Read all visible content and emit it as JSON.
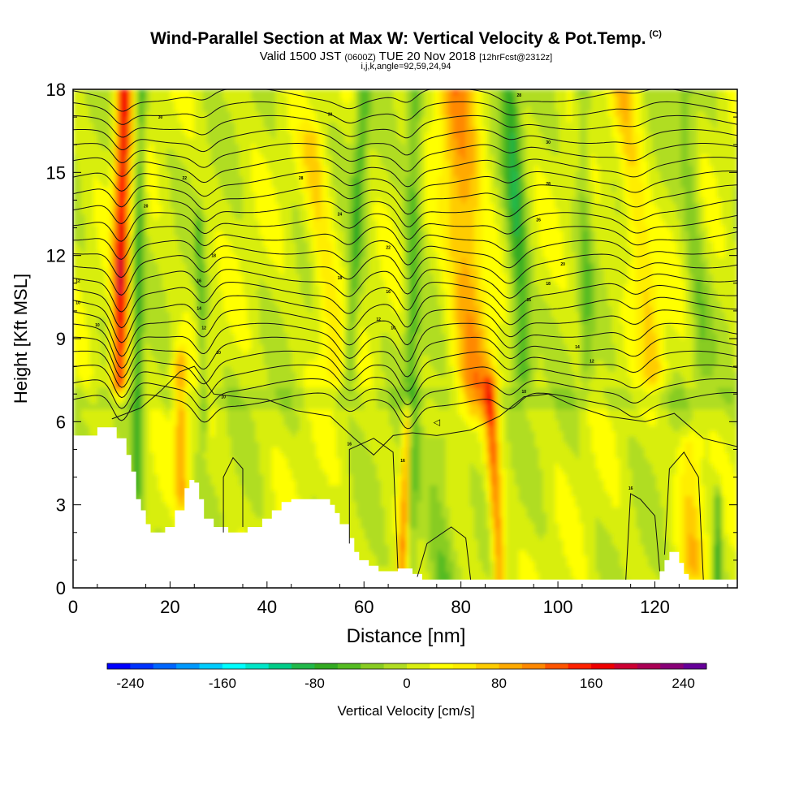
{
  "header": {
    "title": "Wind-Parallel Section at Max W: Vertical Velocity & Pot.Temp.",
    "title_tag": "(C)",
    "subtitle_main_a": "Valid 1500 JST",
    "subtitle_zulu": "(0600Z)",
    "subtitle_main_b": "TUE 20 Nov 2018",
    "subtitle_fcst": "[12hrFcst@2312z]",
    "subtitle_params": "i,j,k,angle=92,59,24,94"
  },
  "chart_data": {
    "type": "heatmap",
    "title": "Wind-Parallel Section at Max W: Vertical Velocity & Pot.Temp.",
    "xlabel": "Distance [nm]",
    "ylabel": "Height [Kft MSL]",
    "xlim": [
      0,
      137
    ],
    "ylim": [
      0,
      18
    ],
    "x_ticks": [
      0,
      20,
      40,
      60,
      80,
      100,
      120
    ],
    "x_tick_labels": [
      "0",
      "20",
      "40",
      "60",
      "80",
      "100",
      "120"
    ],
    "y_ticks": [
      0,
      3,
      6,
      9,
      12,
      15,
      18
    ],
    "y_tick_labels": [
      "0",
      "3",
      "6",
      "9",
      "12",
      "15",
      "18"
    ],
    "colorbar": {
      "label": "Vertical Velocity [cm/s]",
      "min": -260,
      "max": 260,
      "step": 20,
      "tick_values": [
        -240,
        -160,
        -80,
        0,
        80,
        160,
        240
      ],
      "tick_labels": [
        "-240",
        "-160",
        "-80",
        "0",
        "80",
        "160",
        "240"
      ],
      "colors": [
        "#0000ff",
        "#0033ff",
        "#0066ff",
        "#0099ff",
        "#00ccff",
        "#00ffff",
        "#00e6c8",
        "#00cc88",
        "#22b84a",
        "#33aa22",
        "#55bb22",
        "#88cc22",
        "#b0dd22",
        "#d8ee11",
        "#ffff00",
        "#ffee00",
        "#ffcc00",
        "#ffaa00",
        "#ff8800",
        "#ff5500",
        "#ff2200",
        "#ee0000",
        "#cc0033",
        "#aa0055",
        "#880077",
        "#660099"
      ]
    },
    "terrain": {
      "x": [
        0,
        5,
        9,
        11,
        12,
        13,
        14,
        15,
        16,
        19,
        21,
        23,
        24,
        25,
        26,
        27,
        29,
        32,
        35,
        36,
        39,
        41,
        43,
        45,
        50,
        53,
        54,
        55,
        57,
        58,
        59,
        61,
        63,
        65,
        67,
        70,
        72,
        76,
        80,
        84,
        88,
        92,
        96,
        100,
        104,
        108,
        112,
        116,
        120,
        121,
        122,
        123,
        124,
        125,
        126,
        127,
        130,
        133,
        137
      ],
      "top": [
        5.5,
        5.8,
        5.4,
        4.8,
        4.2,
        3.2,
        2.8,
        2.3,
        2.0,
        2.2,
        2.8,
        3.6,
        3.9,
        3.8,
        3.2,
        2.5,
        2.2,
        2.0,
        2.0,
        2.2,
        2.5,
        2.8,
        3.1,
        3.2,
        3.2,
        3.0,
        2.7,
        2.3,
        1.8,
        1.3,
        1.0,
        0.8,
        0.6,
        0.6,
        0.7,
        0.5,
        0.3,
        0.3,
        0.3,
        0.3,
        0.3,
        0.3,
        0.3,
        0.3,
        0.3,
        0.3,
        0.3,
        0.3,
        0.3,
        0.6,
        1.0,
        1.3,
        1.3,
        0.9,
        0.5,
        0.3,
        0.3,
        0.3,
        0.3
      ]
    },
    "updraft_bands": [
      {
        "x_top": 10.5,
        "x_bottom": 9.5,
        "z_top": 18,
        "z_bottom": 7.6,
        "half_width_nm": 1.6,
        "peak_cm_s": 160
      },
      {
        "x_top": 22,
        "x_bottom": 22.5,
        "z_top": 8,
        "z_bottom": 3.5,
        "half_width_nm": 1.4,
        "peak_cm_s": 80
      },
      {
        "x_top": 49,
        "x_bottom": 54,
        "z_top": 16,
        "z_bottom": 8,
        "half_width_nm": 2.5,
        "peak_cm_s": 50
      },
      {
        "x_top": 69,
        "x_bottom": 68,
        "z_top": 6,
        "z_bottom": 0.6,
        "half_width_nm": 1.0,
        "peak_cm_s": 120
      },
      {
        "x_top": 79,
        "x_bottom": 83,
        "z_top": 18,
        "z_bottom": 7,
        "half_width_nm": 4.0,
        "peak_cm_s": 90
      },
      {
        "x_top": 86,
        "x_bottom": 88,
        "z_top": 7,
        "z_bottom": 0.5,
        "half_width_nm": 1.3,
        "peak_cm_s": 110
      },
      {
        "x_top": 113,
        "x_bottom": 120,
        "z_top": 18,
        "z_bottom": 8,
        "half_width_nm": 2.5,
        "peak_cm_s": 60
      },
      {
        "x_top": 127,
        "x_bottom": 128,
        "z_top": 5,
        "z_bottom": 1,
        "half_width_nm": 2.5,
        "peak_cm_s": 60
      }
    ],
    "downdraft_bands": [
      {
        "x_top": 14,
        "x_bottom": 13,
        "z_top": 18,
        "z_bottom": 2,
        "half_width_nm": 1.1,
        "peak_cm_s": -70
      },
      {
        "x_top": 26,
        "x_bottom": 27,
        "z_top": 13,
        "z_bottom": 6,
        "half_width_nm": 0.9,
        "peak_cm_s": -50
      },
      {
        "x_top": 60,
        "x_bottom": 57,
        "z_top": 18,
        "z_bottom": 8,
        "half_width_nm": 1.4,
        "peak_cm_s": -60
      },
      {
        "x_top": 70.5,
        "x_bottom": 69.5,
        "z_top": 18,
        "z_bottom": 1,
        "half_width_nm": 1.6,
        "peak_cm_s": -60
      },
      {
        "x_top": 90,
        "x_bottom": 93,
        "z_top": 18,
        "z_bottom": 8,
        "half_width_nm": 2.0,
        "peak_cm_s": -80
      },
      {
        "x_top": 75,
        "x_bottom": 76,
        "z_top": 5,
        "z_bottom": 0.5,
        "half_width_nm": 3.0,
        "peak_cm_s": -40
      },
      {
        "x_top": 105,
        "x_bottom": 106,
        "z_top": 18,
        "z_bottom": 8,
        "half_width_nm": 1.5,
        "peak_cm_s": -40
      },
      {
        "x_top": 126,
        "x_bottom": 130,
        "z_top": 18,
        "z_bottom": 8,
        "half_width_nm": 2.0,
        "peak_cm_s": -40
      },
      {
        "x_top": 133,
        "x_bottom": 133,
        "z_top": 3,
        "z_bottom": 0.3,
        "half_width_nm": 0.8,
        "peak_cm_s": -80
      }
    ],
    "isentropes": {
      "levels_z_at_far_field": [
        6.8,
        7.3,
        7.8,
        8.3,
        8.8,
        9.3,
        9.8,
        10.3,
        10.8,
        11.3,
        11.8,
        12.3,
        12.8,
        13.3,
        13.8,
        14.3,
        14.8,
        15.3,
        15.8,
        16.3,
        16.8,
        17.3,
        17.8
      ],
      "wave_amplitudes": [
        {
          "x": 10,
          "amp_kft": 1.3,
          "width_nm": 2.5
        },
        {
          "x": 27,
          "amp_kft": 0.8,
          "width_nm": 2.5
        },
        {
          "x": 57,
          "amp_kft": 0.8,
          "width_nm": 3.0
        },
        {
          "x": 69,
          "amp_kft": 1.1,
          "width_nm": 2.5
        },
        {
          "x": 90,
          "amp_kft": 0.7,
          "width_nm": 3.0
        },
        {
          "x": 116,
          "amp_kft": 0.5,
          "width_nm": 3.0
        }
      ],
      "labels": [
        {
          "x": 18,
          "z": 17.0,
          "text": "30"
        },
        {
          "x": 23,
          "z": 14.8,
          "text": "22"
        },
        {
          "x": 15,
          "z": 13.8,
          "text": "20"
        },
        {
          "x": 29,
          "z": 12.0,
          "text": "18"
        },
        {
          "x": 26,
          "z": 11.1,
          "text": "16"
        },
        {
          "x": 26,
          "z": 10.1,
          "text": "14"
        },
        {
          "x": 27,
          "z": 9.4,
          "text": "12"
        },
        {
          "x": 1,
          "z": 11.1,
          "text": "12"
        },
        {
          "x": 1,
          "z": 10.3,
          "text": "10"
        },
        {
          "x": 5,
          "z": 9.5,
          "text": "10"
        },
        {
          "x": 30,
          "z": 8.5,
          "text": "10"
        },
        {
          "x": 31,
          "z": 6.9,
          "text": "10"
        },
        {
          "x": 47,
          "z": 14.8,
          "text": "28"
        },
        {
          "x": 55,
          "z": 13.5,
          "text": "24"
        },
        {
          "x": 55,
          "z": 11.2,
          "text": "18"
        },
        {
          "x": 53,
          "z": 17.1,
          "text": "30"
        },
        {
          "x": 63,
          "z": 9.7,
          "text": "12"
        },
        {
          "x": 66,
          "z": 9.4,
          "text": "10"
        },
        {
          "x": 65,
          "z": 12.3,
          "text": "22"
        },
        {
          "x": 65,
          "z": 10.7,
          "text": "16"
        },
        {
          "x": 57,
          "z": 5.2,
          "text": "16"
        },
        {
          "x": 68,
          "z": 4.6,
          "text": "16"
        },
        {
          "x": 92,
          "z": 17.8,
          "text": "28"
        },
        {
          "x": 98,
          "z": 16.1,
          "text": "30"
        },
        {
          "x": 98,
          "z": 14.6,
          "text": "28"
        },
        {
          "x": 96,
          "z": 13.3,
          "text": "26"
        },
        {
          "x": 101,
          "z": 11.7,
          "text": "20"
        },
        {
          "x": 98,
          "z": 11.0,
          "text": "18"
        },
        {
          "x": 94,
          "z": 10.4,
          "text": "16"
        },
        {
          "x": 104,
          "z": 8.7,
          "text": "14"
        },
        {
          "x": 107,
          "z": 8.2,
          "text": "12"
        },
        {
          "x": 93,
          "z": 7.1,
          "text": "10"
        },
        {
          "x": 115,
          "z": 3.6,
          "text": "16"
        }
      ]
    },
    "low_level_contours": {
      "lines": [
        [
          [
            8,
            6.1
          ],
          [
            14,
            6.5
          ],
          [
            18,
            7.1
          ],
          [
            22,
            7.8
          ],
          [
            25,
            8.0
          ],
          [
            29,
            7.0
          ],
          [
            34,
            6.9
          ],
          [
            40,
            6.8
          ],
          [
            46,
            6.4
          ],
          [
            53,
            6.2
          ],
          [
            58,
            5.4
          ],
          [
            62,
            4.8
          ],
          [
            66,
            5.5
          ],
          [
            70,
            5.6
          ],
          [
            75,
            5.5
          ],
          [
            82,
            5.7
          ],
          [
            88,
            6.2
          ],
          [
            93,
            6.9
          ],
          [
            98,
            7.0
          ],
          [
            103,
            6.6
          ],
          [
            110,
            6.2
          ],
          [
            118,
            6.0
          ],
          [
            124,
            6.3
          ],
          [
            130,
            5.4
          ],
          [
            137,
            5.1
          ]
        ],
        [
          [
            31,
            2.0
          ],
          [
            31,
            4.0
          ],
          [
            33,
            4.7
          ],
          [
            35,
            4.3
          ],
          [
            35,
            2.2
          ]
        ],
        [
          [
            57,
            1.6
          ],
          [
            57,
            5.0
          ],
          [
            62,
            5.4
          ],
          [
            66,
            4.9
          ],
          [
            67,
            0.7
          ]
        ],
        [
          [
            71,
            0.4
          ],
          [
            73,
            1.6
          ],
          [
            78,
            2.2
          ],
          [
            81,
            1.8
          ],
          [
            82,
            0.3
          ]
        ],
        [
          [
            114,
            0.3
          ],
          [
            115,
            3.4
          ],
          [
            117,
            3.2
          ],
          [
            120,
            2.6
          ],
          [
            121,
            0.6
          ]
        ],
        [
          [
            122,
            1.2
          ],
          [
            123,
            4.3
          ],
          [
            126,
            4.9
          ],
          [
            129,
            4.0
          ],
          [
            130,
            0.3
          ]
        ]
      ],
      "marker": {
        "x": 75,
        "z": 6.0,
        "text": "◁"
      }
    }
  }
}
